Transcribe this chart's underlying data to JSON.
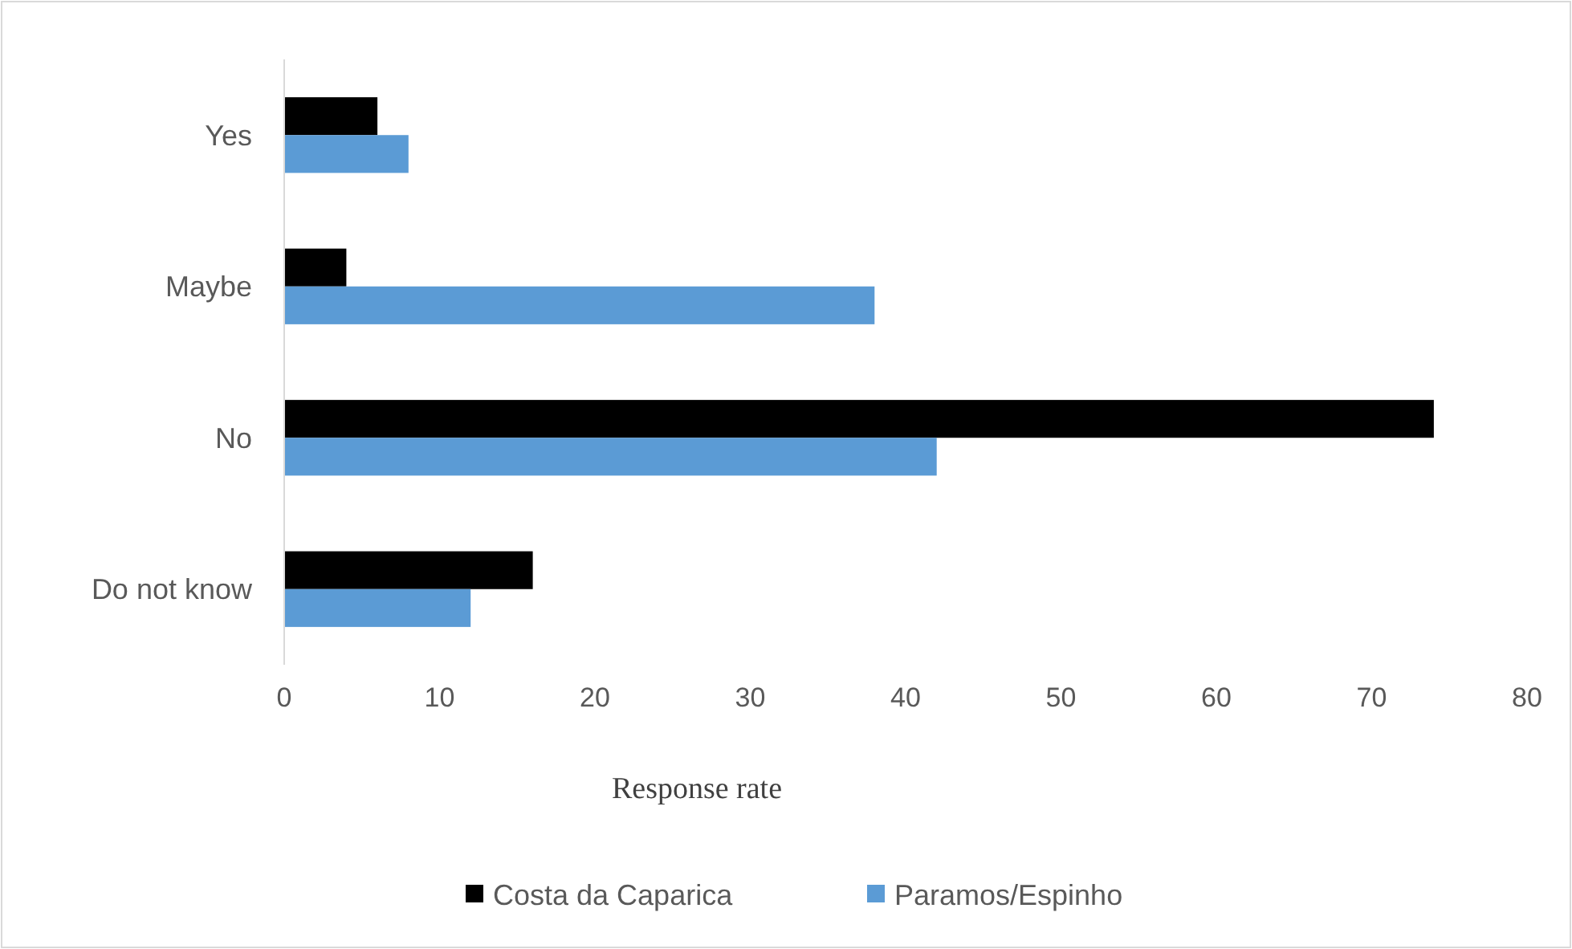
{
  "chart_data": {
    "type": "bar",
    "orientation": "horizontal",
    "xlabel": "Response rate",
    "categories": [
      "Yes",
      "Maybe",
      "No",
      "Do not know"
    ],
    "series": [
      {
        "name": "Costa da Caparica",
        "color": "#000000",
        "values": [
          6,
          4,
          74,
          16
        ]
      },
      {
        "name": "Paramos/Espinho",
        "color": "#5b9bd5",
        "values": [
          8,
          38,
          42,
          12
        ]
      }
    ],
    "xlim": [
      0,
      80
    ],
    "xticks": [
      0,
      10,
      20,
      30,
      40,
      50,
      60,
      70,
      80
    ],
    "grid": false,
    "legend": "bottom"
  }
}
